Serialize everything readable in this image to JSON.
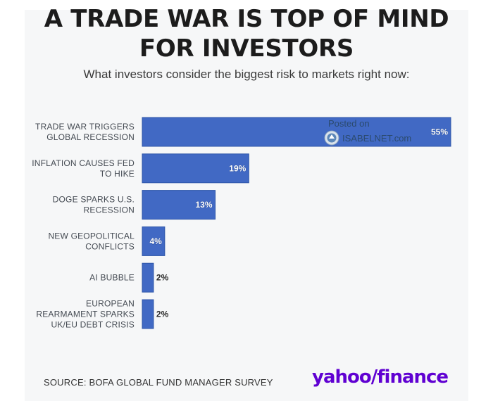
{
  "header": {
    "title_line1": "A TRADE WAR IS TOP OF MIND",
    "title_line2": "FOR INVESTORS",
    "subtitle": "What investors consider the biggest risk to markets right now:"
  },
  "watermark": {
    "line1": "Posted on",
    "line2": "ISABELNET.com"
  },
  "footer": {
    "source": "SOURCE: BOFA GLOBAL FUND MANAGER SURVEY",
    "brand_part1": "yahoo",
    "brand_part2": "/",
    "brand_part3": "finance"
  },
  "colors": {
    "bar": "#4169c4",
    "bar_edge": "#2d55a8",
    "label_inside": "#ffffff",
    "label_outside": "#2a2a2a"
  },
  "chart_data": {
    "type": "bar",
    "orientation": "horizontal",
    "categories": [
      [
        "TRADE WAR TRIGGERS",
        "GLOBAL RECESSION"
      ],
      [
        "INFLATION CAUSES FED",
        "TO HIKE"
      ],
      [
        "DOGE SPARKS U.S.",
        "RECESSION"
      ],
      [
        "NEW GEOPOLITICAL",
        "CONFLICTS"
      ],
      [
        "AI BUBBLE"
      ],
      [
        "EUROPEAN",
        "REARMAMENT SPARKS",
        "UK/EU DEBT CRISIS"
      ]
    ],
    "values": [
      55,
      19,
      13,
      4,
      2,
      2
    ],
    "value_labels": [
      "55%",
      "19%",
      "13%",
      "4%",
      "2%",
      "2%"
    ],
    "unit": "%",
    "xlim": [
      0,
      55
    ]
  }
}
